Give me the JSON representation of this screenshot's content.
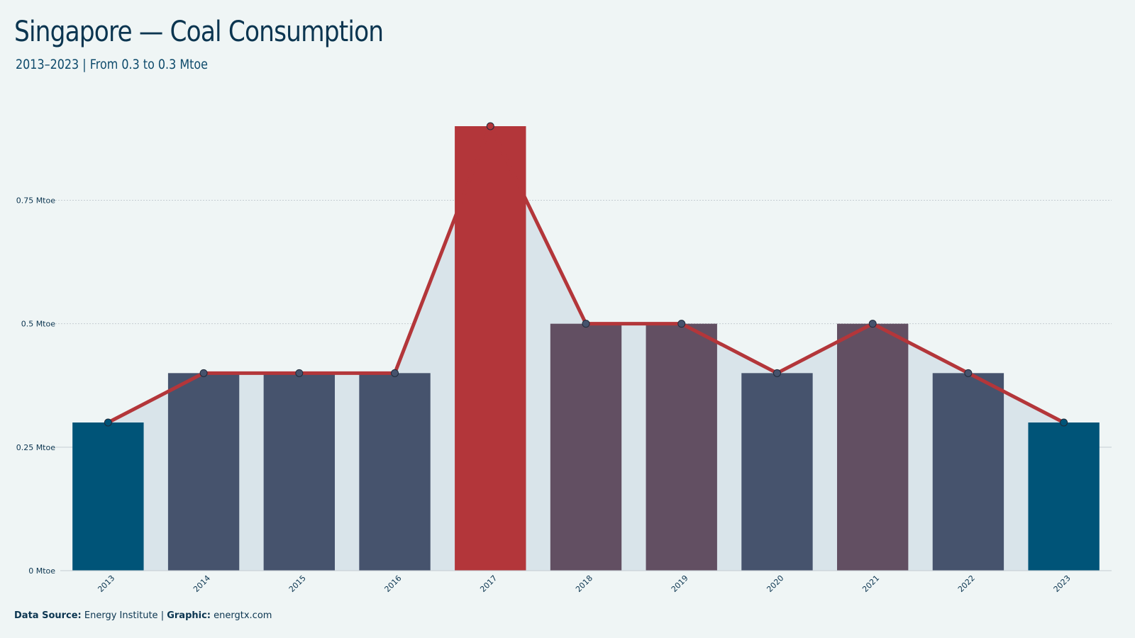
{
  "header": {
    "title": "Singapore — Coal Consumption",
    "subtitle": "2013–2023 | From 0.3 to 0.3 Mtoe"
  },
  "footer": {
    "source_label": "Data Source:",
    "source_value": "Energy Institute",
    "separator": "|",
    "graphic_label": "Graphic:",
    "graphic_value": "energtx.com"
  },
  "colors": {
    "endpoint_bar": "#005478",
    "bar_0_4": "#46536d",
    "bar_0_5": "#624f62",
    "peak_bar": "#b3363a",
    "line": "#b3363a",
    "area": "#d9e4ea",
    "marker": "#46536d",
    "grid": "#c5cdd2"
  },
  "chart_data": {
    "type": "bar",
    "categories": [
      "2013",
      "2014",
      "2015",
      "2016",
      "2017",
      "2018",
      "2019",
      "2020",
      "2021",
      "2022",
      "2023"
    ],
    "values": [
      0.3,
      0.4,
      0.4,
      0.4,
      0.9,
      0.5,
      0.5,
      0.4,
      0.5,
      0.4,
      0.3
    ],
    "overlay": "line-with-area",
    "ylim": [
      0,
      0.9
    ],
    "yticks": [
      0,
      0.25,
      0.5,
      0.75
    ],
    "ytick_labels": [
      "0 Mtoe",
      "0.25 Mtoe",
      "0.5 Mtoe",
      "0.75 Mtoe"
    ],
    "grid": true,
    "legend": "none"
  }
}
